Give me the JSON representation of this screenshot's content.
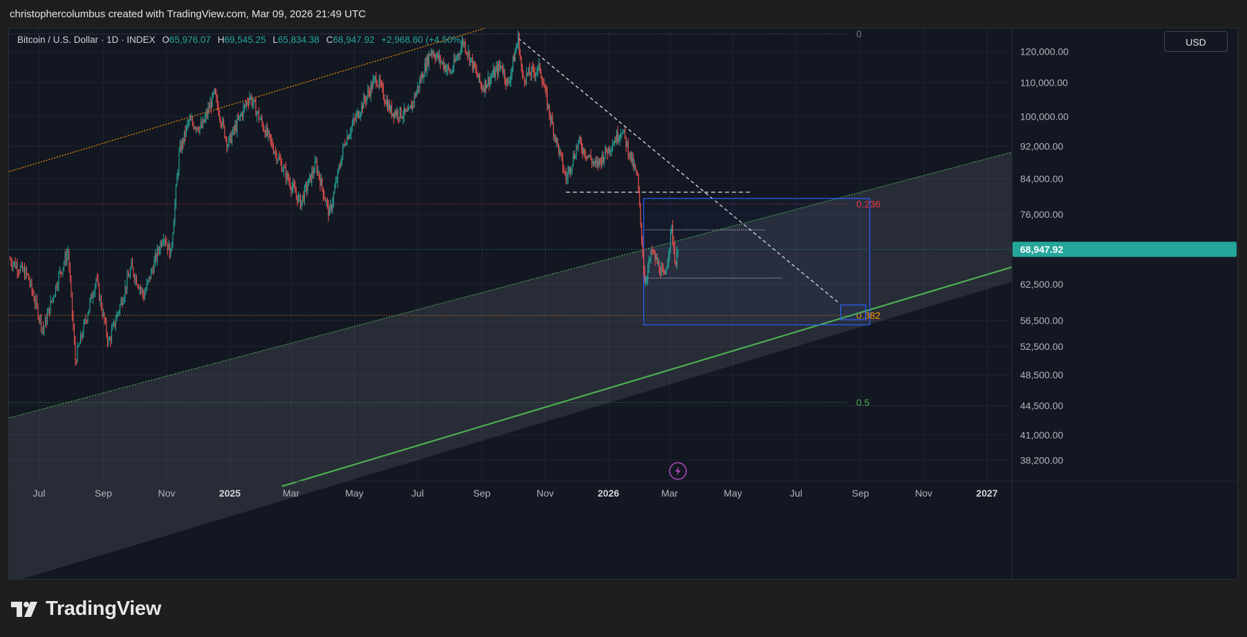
{
  "header": {
    "attribution": "christophercolumbus created with TradingView.com, Mar 09, 2026 21:49 UTC"
  },
  "legend": {
    "symbol": "Bitcoin / U.S. Dollar · 1D · INDEX",
    "open_label": "O",
    "open": "65,976.07",
    "high_label": "H",
    "high": "69,545.25",
    "low_label": "L",
    "low": "65,834.38",
    "close_label": "C",
    "close": "68,947.92",
    "change": "+2,968.60 (+4.50%)"
  },
  "currency_button": "USD",
  "footer": {
    "brand": "TradingView"
  },
  "colors": {
    "up": "#26a69a",
    "down": "#ef5350",
    "price_tag": "#26a69a",
    "fib_0236": "#f23645",
    "fib_0382": "#ff9800",
    "fib_05": "#4caf50",
    "channel_orange": "#ff9800",
    "support_green": "#4caf50",
    "box_blue": "#2962ff"
  },
  "chart_data": {
    "type": "candlestick",
    "symbol": "Bitcoin / U.S. Dollar",
    "interval": "1D",
    "y_scale": "log",
    "ylim": [
      36000,
      128000
    ],
    "xlim": [
      "2024-06-02",
      "2027-01-25"
    ],
    "y_ticks": [
      {
        "value": 120000,
        "label": "120,000.00"
      },
      {
        "value": 110000,
        "label": "110,000.00"
      },
      {
        "value": 100000,
        "label": "100,000.00"
      },
      {
        "value": 92000,
        "label": "92,000.00"
      },
      {
        "value": 84000,
        "label": "84,000.00"
      },
      {
        "value": 76000,
        "label": "76,000.00"
      },
      {
        "value": 62500,
        "label": "62,500.00"
      },
      {
        "value": 56500,
        "label": "56,500.00"
      },
      {
        "value": 52500,
        "label": "52,500.00"
      },
      {
        "value": 48500,
        "label": "48,500.00"
      },
      {
        "value": 44500,
        "label": "44,500.00"
      },
      {
        "value": 41000,
        "label": "41,000.00"
      },
      {
        "value": 38200,
        "label": "38,200.00"
      }
    ],
    "x_ticks": [
      {
        "date": "2024-07-01",
        "label": "Jul",
        "bold": false
      },
      {
        "date": "2024-09-01",
        "label": "Sep",
        "bold": false
      },
      {
        "date": "2024-11-01",
        "label": "Nov",
        "bold": false
      },
      {
        "date": "2025-01-01",
        "label": "2025",
        "bold": true
      },
      {
        "date": "2025-03-01",
        "label": "Mar",
        "bold": false
      },
      {
        "date": "2025-05-01",
        "label": "May",
        "bold": false
      },
      {
        "date": "2025-07-01",
        "label": "Jul",
        "bold": false
      },
      {
        "date": "2025-09-01",
        "label": "Sep",
        "bold": false
      },
      {
        "date": "2025-11-01",
        "label": "Nov",
        "bold": false
      },
      {
        "date": "2026-01-01",
        "label": "2026",
        "bold": true
      },
      {
        "date": "2026-03-01",
        "label": "Mar",
        "bold": false
      },
      {
        "date": "2026-05-01",
        "label": "May",
        "bold": false
      },
      {
        "date": "2026-07-01",
        "label": "Jul",
        "bold": false
      },
      {
        "date": "2026-09-01",
        "label": "Sep",
        "bold": false
      },
      {
        "date": "2026-11-01",
        "label": "Nov",
        "bold": false
      },
      {
        "date": "2027-01-01",
        "label": "2027",
        "bold": true
      }
    ],
    "last_price": {
      "value": 68947.92,
      "label": "68,947.92"
    },
    "price_path": [
      [
        "2024-06-03",
        67000
      ],
      [
        "2024-06-20",
        64000
      ],
      [
        "2024-07-05",
        55000
      ],
      [
        "2024-07-20",
        64000
      ],
      [
        "2024-07-29",
        68500
      ],
      [
        "2024-08-05",
        50500
      ],
      [
        "2024-08-25",
        63500
      ],
      [
        "2024-09-06",
        53000
      ],
      [
        "2024-09-28",
        65500
      ],
      [
        "2024-10-10",
        60500
      ],
      [
        "2024-10-29",
        72000
      ],
      [
        "2024-11-05",
        68000
      ],
      [
        "2024-11-13",
        90000
      ],
      [
        "2024-11-22",
        98500
      ],
      [
        "2024-12-05",
        97000
      ],
      [
        "2024-12-17",
        106500
      ],
      [
        "2024-12-30",
        92500
      ],
      [
        "2025-01-20",
        106000
      ],
      [
        "2025-02-01",
        98000
      ],
      [
        "2025-02-26",
        84000
      ],
      [
        "2025-03-10",
        78500
      ],
      [
        "2025-03-25",
        87500
      ],
      [
        "2025-04-07",
        76000
      ],
      [
        "2025-04-22",
        93500
      ],
      [
        "2025-05-08",
        103000
      ],
      [
        "2025-05-22",
        111500
      ],
      [
        "2025-06-05",
        101500
      ],
      [
        "2025-06-22",
        100500
      ],
      [
        "2025-07-14",
        120500
      ],
      [
        "2025-08-02",
        113000
      ],
      [
        "2025-08-14",
        123500
      ],
      [
        "2025-09-01",
        108500
      ],
      [
        "2025-09-20",
        115500
      ],
      [
        "2025-09-26",
        109000
      ],
      [
        "2025-10-06",
        124500
      ],
      [
        "2025-10-10",
        111500
      ],
      [
        "2025-10-27",
        114500
      ],
      [
        "2025-11-05",
        101000
      ],
      [
        "2025-11-21",
        84000
      ],
      [
        "2025-12-03",
        93000
      ],
      [
        "2025-12-20",
        87000
      ],
      [
        "2026-01-14",
        96500
      ],
      [
        "2026-01-29",
        84000
      ],
      [
        "2026-02-05",
        63000
      ],
      [
        "2026-02-12",
        68500
      ],
      [
        "2026-02-24",
        63500
      ],
      [
        "2026-03-03",
        73000
      ],
      [
        "2026-03-07",
        66000
      ],
      [
        "2026-03-09",
        68947.92
      ]
    ],
    "fib_levels": [
      {
        "ratio": "0",
        "value": 126000,
        "color": "#787b86"
      },
      {
        "ratio": "0.236",
        "value": 78300,
        "color": "#f23645"
      },
      {
        "ratio": "0.382",
        "value": 57300,
        "color": "#ff9800"
      },
      {
        "ratio": "0.5",
        "value": 44900,
        "color": "#4caf50"
      }
    ],
    "drawings": {
      "orange_channel_line": [
        [
          "2024-06-02",
          85700
        ],
        [
          "2025-12-31",
          142000
        ]
      ],
      "green_dotted_line": [
        [
          "2024-06-02",
          43000
        ],
        [
          "2027-01-25",
          90500
        ]
      ],
      "green_solid_line": [
        [
          "2025-02-20",
          35500
        ],
        [
          "2027-01-25",
          65600
        ]
      ],
      "white_dashed_trendline": [
        [
          "2025-10-06",
          124500
        ],
        [
          "2026-08-10",
          59500
        ]
      ],
      "white_dashed_support": [
        [
          "2025-11-21",
          80900
        ],
        [
          "2026-05-18",
          80900
        ]
      ],
      "white_dotted_upper": [
        [
          "2026-02-04",
          72800
        ],
        [
          "2026-06-02",
          72800
        ]
      ],
      "white_dotted_lower": [
        [
          "2026-02-04",
          63600
        ],
        [
          "2026-06-17",
          63600
        ]
      ],
      "blue_box": [
        [
          "2026-02-04",
          79500
        ],
        [
          "2026-09-10",
          55800
        ]
      ],
      "blue_small_box": [
        [
          "2026-08-13",
          59000
        ],
        [
          "2026-09-06",
          56600
        ]
      ]
    }
  }
}
